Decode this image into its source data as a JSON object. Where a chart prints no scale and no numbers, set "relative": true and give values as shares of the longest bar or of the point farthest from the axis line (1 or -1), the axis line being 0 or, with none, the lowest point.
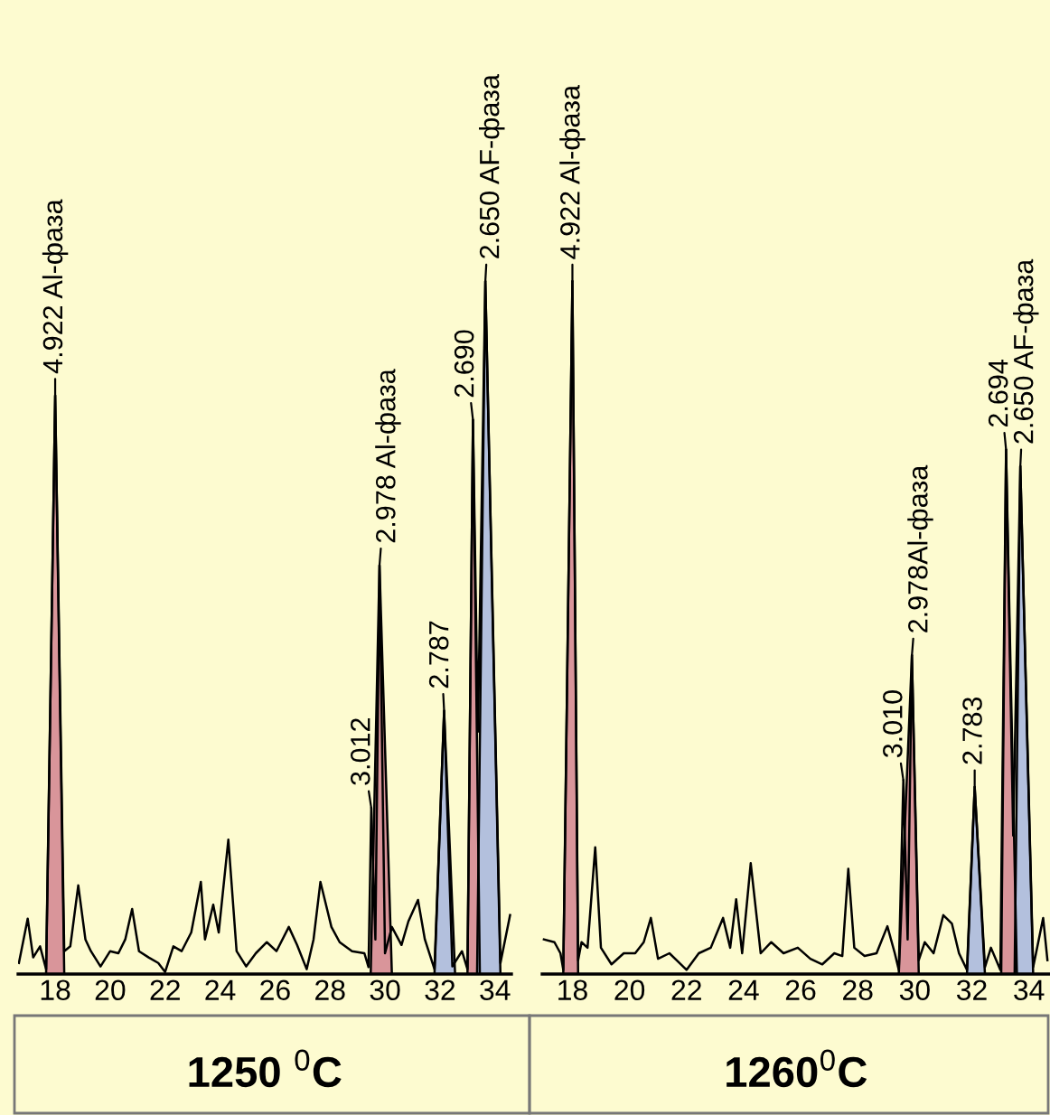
{
  "chart_data": [
    {
      "type": "line",
      "relative": true,
      "xlim": [
        16.65,
        34.6
      ],
      "xticks": [
        18,
        20,
        22,
        24,
        26,
        28,
        30,
        32,
        34
      ],
      "tick_labels": "x",
      "xlabel": "1250 $^{0}$C",
      "series": [
        {
          "color": "#000000",
          "x": [
            16.68,
            17.0,
            17.2,
            17.45,
            17.67,
            18.0,
            18.33,
            18.55,
            18.84,
            19.1,
            19.3,
            19.65,
            20.0,
            20.3,
            20.55,
            20.8,
            21.05,
            21.4,
            21.75,
            22.0,
            22.3,
            22.6,
            22.95,
            23.3,
            23.45,
            23.75,
            23.95,
            24.3,
            24.6,
            24.95,
            25.3,
            25.7,
            26.05,
            26.5,
            26.8,
            27.15,
            27.4,
            27.65,
            28.05,
            28.35,
            28.8,
            29.25,
            29.4,
            29.5,
            29.65,
            29.8,
            30.0,
            30.25,
            30.6,
            30.85,
            31.2,
            31.45,
            31.8,
            32.15,
            32.45,
            32.8,
            33.0,
            33.2,
            33.38,
            33.65,
            34.2,
            34.55
          ],
          "values": [
            0.016,
            0.08,
            0.024,
            0.04,
            0.007,
            0.835,
            0.033,
            0.04,
            0.128,
            0.05,
            0.033,
            0.011,
            0.033,
            0.03,
            0.05,
            0.094,
            0.033,
            0.024,
            0.016,
            0.003,
            0.04,
            0.033,
            0.06,
            0.133,
            0.05,
            0.1,
            0.06,
            0.194,
            0.033,
            0.011,
            0.03,
            0.046,
            0.033,
            0.068,
            0.042,
            0.007,
            0.05,
            0.133,
            0.068,
            0.046,
            0.033,
            0.03,
            0.01,
            0.24,
            0.05,
            0.59,
            0.03,
            0.068,
            0.042,
            0.076,
            0.107,
            0.05,
            0.007,
            0.38,
            0.011,
            0.033,
            0.007,
            0.8,
            0.35,
            1.0,
            0.016,
            0.085
          ]
        },
        {
          "type": "area",
          "color": "#d9959a",
          "x": [
            17.67,
            18.0,
            18.33
          ],
          "values": [
            0,
            0.835,
            0
          ]
        },
        {
          "type": "area",
          "color": "#d9959a",
          "x": [
            29.48,
            29.8,
            30.25
          ],
          "values": [
            0,
            0.59,
            0
          ]
        },
        {
          "type": "area",
          "color": "#b3c0dd",
          "x": [
            31.8,
            32.15,
            32.55
          ],
          "values": [
            0,
            0.38,
            0
          ]
        },
        {
          "type": "area",
          "color": "#d9959a",
          "x": [
            33.0,
            33.2,
            33.45
          ],
          "values": [
            0,
            0.8,
            0
          ]
        },
        {
          "type": "area",
          "color": "#b3c0dd",
          "x": [
            33.35,
            33.65,
            34.2
          ],
          "values": [
            0,
            1.0,
            0
          ]
        }
      ],
      "annotations": [
        {
          "text": "4.922 Al-фаза",
          "x": 18.0,
          "y": 0.835
        },
        {
          "text": "3.012",
          "x": 29.5,
          "y": 0.24
        },
        {
          "text": "2.978 Al-фаза",
          "x": 29.8,
          "y": 0.59
        },
        {
          "text": "2.787",
          "x": 32.15,
          "y": 0.38
        },
        {
          "text": "2.690",
          "x": 33.2,
          "y": 0.8
        },
        {
          "text": "2.650 AF-фаза",
          "x": 33.65,
          "y": 1.0
        }
      ]
    },
    {
      "type": "line",
      "relative": true,
      "xlim": [
        16.94,
        34.74
      ],
      "xticks": [
        18,
        20,
        22,
        24,
        26,
        28,
        30,
        32,
        34
      ],
      "tick_labels": "x",
      "xlabel": "1260$^{0}$C",
      "series": [
        {
          "color": "#000000",
          "x": [
            17.0,
            17.37,
            17.58,
            17.68,
            18.0,
            18.2,
            18.32,
            18.53,
            18.8,
            19.0,
            19.37,
            19.8,
            20.2,
            20.5,
            20.75,
            21.0,
            21.4,
            21.7,
            22.0,
            22.43,
            22.85,
            23.28,
            23.53,
            23.74,
            23.95,
            24.25,
            24.6,
            24.97,
            25.4,
            25.9,
            26.34,
            26.76,
            27.18,
            27.46,
            27.67,
            27.88,
            28.24,
            28.66,
            29.04,
            29.3,
            29.44,
            29.6,
            29.75,
            29.9,
            30.14,
            30.35,
            30.66,
            31.0,
            31.3,
            31.55,
            31.83,
            32.1,
            32.46,
            32.67,
            33.0,
            33.2,
            33.45,
            33.7,
            34.15,
            34.25,
            34.5,
            34.65
          ],
          "values": [
            0.05,
            0.046,
            0.03,
            0.006,
            1.0,
            0.02,
            0.046,
            0.038,
            0.183,
            0.038,
            0.014,
            0.03,
            0.03,
            0.046,
            0.081,
            0.022,
            0.03,
            0.018,
            0.006,
            0.03,
            0.038,
            0.081,
            0.038,
            0.108,
            0.03,
            0.16,
            0.03,
            0.046,
            0.03,
            0.038,
            0.022,
            0.014,
            0.03,
            0.026,
            0.152,
            0.038,
            0.026,
            0.03,
            0.069,
            0.03,
            0.006,
            0.28,
            0.05,
            0.46,
            0.02,
            0.046,
            0.03,
            0.085,
            0.073,
            0.03,
            0.006,
            0.27,
            0.01,
            0.038,
            0.006,
            0.757,
            0.2,
            0.733,
            0.01,
            0.03,
            0.081,
            0.02
          ]
        },
        {
          "type": "area",
          "color": "#d9959a",
          "x": [
            17.68,
            18.0,
            18.2
          ],
          "values": [
            0,
            1.0,
            0
          ]
        },
        {
          "type": "area",
          "color": "#d9959a",
          "x": [
            29.44,
            29.9,
            30.14
          ],
          "values": [
            0,
            0.46,
            0
          ]
        },
        {
          "type": "area",
          "color": "#b3c0dd",
          "x": [
            31.83,
            32.1,
            32.46
          ],
          "values": [
            0,
            0.27,
            0
          ]
        },
        {
          "type": "area",
          "color": "#d9959a",
          "x": [
            33.03,
            33.2,
            33.58
          ],
          "values": [
            0,
            0.757,
            0
          ]
        },
        {
          "type": "area",
          "color": "#b3c0dd",
          "x": [
            33.5,
            33.7,
            34.15
          ],
          "values": [
            0,
            0.733,
            0
          ]
        }
      ],
      "annotations": [
        {
          "text": "4.922 Al-фаза",
          "x": 18.0,
          "y": 1.0
        },
        {
          "text": "3.010",
          "x": 29.6,
          "y": 0.28
        },
        {
          "text": "2.978Al-фаза",
          "x": 29.9,
          "y": 0.46
        },
        {
          "text": "2.783",
          "x": 32.1,
          "y": 0.27
        },
        {
          "text": "2.694",
          "x": 33.2,
          "y": 0.757
        },
        {
          "text": "2.650 AF-фаза",
          "x": 33.7,
          "y": 0.733
        }
      ]
    }
  ]
}
